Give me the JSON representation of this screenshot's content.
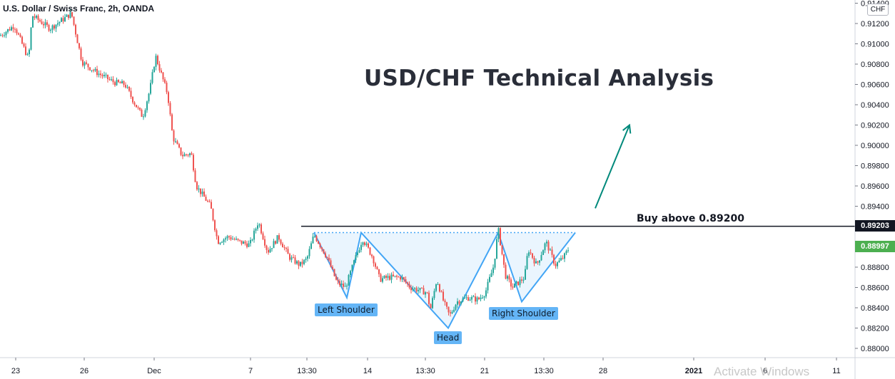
{
  "header": {
    "symbol_title": "U.S. Dollar / Swiss Franc, 2h, OANDA",
    "currency_badge": "CHF"
  },
  "annotations": {
    "main_title": "USD/CHF Technical Analysis",
    "buy_text": "Buy above 0.89200",
    "left_shoulder": "Left Shoulder",
    "head": "Head",
    "right_shoulder": "Right Shoulder"
  },
  "price_tags": {
    "resistance": "0.89203",
    "current": "0.88997"
  },
  "watermark": "Activate Windows",
  "colors": {
    "up": "#26a69a",
    "down": "#ef5350",
    "pattern_fill": "#e3f2fd",
    "pattern_line": "#42a5f5",
    "resistance_line": "#131722",
    "arrow": "#00897b",
    "current_tag": "#4caf50",
    "resistance_tag": "#131722"
  },
  "chart_data": {
    "type": "candlestick",
    "title": "U.S. Dollar / Swiss Franc, 2h, OANDA",
    "y_axis": {
      "ticks": [
        "0.88000",
        "0.88200",
        "0.88400",
        "0.88600",
        "0.88800",
        "0.89000",
        "0.89200",
        "0.89400",
        "0.89600",
        "0.89800",
        "0.90000",
        "0.90200",
        "0.90400",
        "0.90600",
        "0.90800",
        "0.91000",
        "0.91200",
        "0.91400"
      ],
      "range": [
        0.8786,
        0.9144
      ]
    },
    "x_axis": {
      "ticks": [
        "23",
        "26",
        "Dec",
        "7",
        "13:30",
        "14",
        "13:30",
        "21",
        "13:30",
        "28",
        "2021",
        "6",
        "11"
      ]
    },
    "resistance_level": 0.89203,
    "current_price": 0.88997,
    "price_path": [
      [
        0,
        0.9108
      ],
      [
        20,
        0.9118
      ],
      [
        40,
        0.9085
      ],
      [
        45,
        0.9128
      ],
      [
        70,
        0.9115
      ],
      [
        100,
        0.913
      ],
      [
        115,
        0.9082
      ],
      [
        135,
        0.9072
      ],
      [
        160,
        0.9062
      ],
      [
        175,
        0.906
      ],
      [
        188,
        0.9042
      ],
      [
        200,
        0.9028
      ],
      [
        210,
        0.9055
      ],
      [
        218,
        0.9088
      ],
      [
        235,
        0.905
      ],
      [
        242,
        0.9008
      ],
      [
        255,
        0.899
      ],
      [
        268,
        0.8992
      ],
      [
        275,
        0.896
      ],
      [
        295,
        0.894
      ],
      [
        305,
        0.8905
      ],
      [
        320,
        0.891
      ],
      [
        335,
        0.8905
      ],
      [
        350,
        0.8902
      ],
      [
        362,
        0.8925
      ],
      [
        375,
        0.8895
      ],
      [
        390,
        0.891
      ],
      [
        405,
        0.889
      ],
      [
        420,
        0.8882
      ],
      [
        430,
        0.8888
      ],
      [
        440,
        0.8912
      ],
      [
        458,
        0.889
      ],
      [
        472,
        0.8865
      ],
      [
        484,
        0.886
      ],
      [
        496,
        0.8885
      ],
      [
        508,
        0.8908
      ],
      [
        522,
        0.889
      ],
      [
        532,
        0.8868
      ],
      [
        545,
        0.887
      ],
      [
        562,
        0.887
      ],
      [
        575,
        0.886
      ],
      [
        598,
        0.8855
      ],
      [
        603,
        0.8838
      ],
      [
        612,
        0.8868
      ],
      [
        622,
        0.8845
      ],
      [
        630,
        0.8832
      ],
      [
        640,
        0.8846
      ],
      [
        655,
        0.885
      ],
      [
        670,
        0.8848
      ],
      [
        680,
        0.8855
      ],
      [
        692,
        0.8882
      ],
      [
        698,
        0.8918
      ],
      [
        708,
        0.8872
      ],
      [
        718,
        0.886
      ],
      [
        735,
        0.887
      ],
      [
        740,
        0.8898
      ],
      [
        752,
        0.8882
      ],
      [
        765,
        0.8905
      ],
      [
        778,
        0.8882
      ],
      [
        790,
        0.889
      ],
      [
        798,
        0.89
      ]
    ],
    "pattern": {
      "points": [
        [
          440,
          0.8914
        ],
        [
          486,
          0.885
        ],
        [
          506,
          0.8914
        ],
        [
          628,
          0.882
        ],
        [
          698,
          0.8914
        ],
        [
          731,
          0.8846
        ],
        [
          806,
          0.8914
        ]
      ],
      "neckline": 0.8914
    },
    "target_arrow": {
      "from": [
        834,
        0.8938
      ],
      "to": [
        882,
        0.902
      ]
    }
  }
}
